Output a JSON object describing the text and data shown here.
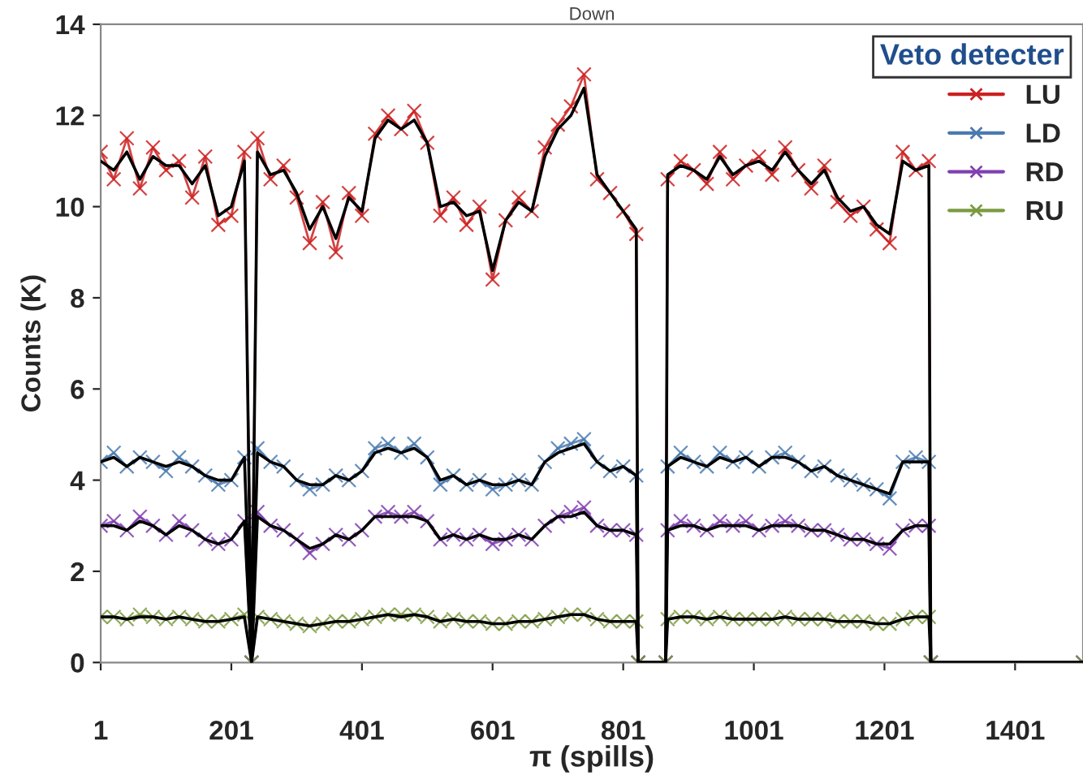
{
  "chart_data": {
    "type": "line",
    "title": "Down",
    "xlabel": "π (spills)",
    "ylabel": "Counts (K)",
    "legend_title": "Veto detecter",
    "legend": "top right",
    "marker": "cross",
    "line_style": "solid",
    "grid": false,
    "x": [
      1,
      21,
      41,
      61,
      81,
      101,
      121,
      141,
      161,
      181,
      201,
      221,
      232,
      241,
      261,
      281,
      301,
      321,
      341,
      361,
      381,
      401,
      421,
      441,
      461,
      481,
      501,
      521,
      541,
      561,
      581,
      601,
      621,
      641,
      661,
      681,
      701,
      721,
      741,
      761,
      781,
      801,
      821,
      824,
      866,
      869,
      889,
      909,
      929,
      949,
      969,
      989,
      1009,
      1029,
      1049,
      1069,
      1089,
      1109,
      1129,
      1149,
      1169,
      1189,
      1209,
      1229,
      1249,
      1269,
      1272,
      1505
    ],
    "xlim": [
      1,
      1505
    ],
    "xticks": [
      1,
      201,
      401,
      601,
      801,
      1001,
      1201,
      1401
    ],
    "ylim": [
      0,
      14
    ],
    "yticks": [
      0,
      2,
      4,
      6,
      8,
      10,
      12,
      14
    ],
    "series": [
      {
        "name": "LU",
        "color": "#cc2020",
        "values": [
          11.2,
          10.6,
          11.5,
          10.4,
          11.3,
          10.8,
          11.0,
          10.2,
          11.1,
          9.6,
          9.8,
          11.2,
          0,
          11.5,
          10.6,
          10.9,
          10.2,
          9.2,
          10.1,
          9.0,
          10.3,
          9.8,
          11.6,
          12.0,
          11.7,
          12.1,
          11.4,
          9.8,
          10.2,
          9.6,
          10.0,
          8.4,
          9.7,
          10.2,
          9.9,
          11.3,
          11.8,
          12.2,
          12.9,
          10.6,
          10.3,
          9.9,
          9.4,
          0,
          0,
          10.6,
          11.0,
          10.8,
          10.5,
          11.2,
          10.6,
          10.9,
          11.1,
          10.7,
          11.3,
          10.8,
          10.4,
          10.9,
          10.1,
          9.8,
          10.0,
          9.5,
          9.2,
          11.2,
          10.8,
          11.0,
          0,
          0
        ]
      },
      {
        "name": "LD",
        "color": "#4a7ab0",
        "values": [
          4.4,
          4.6,
          4.3,
          4.5,
          4.4,
          4.2,
          4.5,
          4.3,
          4.1,
          3.9,
          4.0,
          4.5,
          0,
          4.7,
          4.4,
          4.3,
          4.0,
          3.8,
          3.9,
          4.1,
          4.0,
          4.2,
          4.7,
          4.8,
          4.6,
          4.8,
          4.5,
          3.9,
          4.1,
          3.9,
          4.0,
          3.8,
          3.9,
          4.0,
          3.9,
          4.4,
          4.7,
          4.8,
          4.9,
          4.4,
          4.2,
          4.3,
          4.1,
          0,
          0,
          4.3,
          4.6,
          4.4,
          4.3,
          4.6,
          4.4,
          4.5,
          4.3,
          4.5,
          4.6,
          4.4,
          4.2,
          4.3,
          4.1,
          4.0,
          3.9,
          3.8,
          3.6,
          4.4,
          4.5,
          4.4,
          0,
          0
        ]
      },
      {
        "name": "RD",
        "color": "#8040b0",
        "values": [
          3.0,
          3.1,
          2.9,
          3.2,
          3.0,
          2.8,
          3.1,
          2.9,
          2.7,
          2.6,
          2.7,
          3.1,
          0,
          3.3,
          3.0,
          2.9,
          2.7,
          2.4,
          2.6,
          2.8,
          2.7,
          2.9,
          3.2,
          3.3,
          3.2,
          3.3,
          3.1,
          2.7,
          2.8,
          2.7,
          2.8,
          2.6,
          2.7,
          2.8,
          2.7,
          3.0,
          3.2,
          3.3,
          3.4,
          3.0,
          2.9,
          2.9,
          2.8,
          0,
          0,
          2.9,
          3.1,
          3.0,
          2.9,
          3.1,
          3.0,
          3.1,
          2.9,
          3.0,
          3.1,
          3.0,
          2.9,
          2.9,
          2.8,
          2.7,
          2.7,
          2.6,
          2.5,
          2.9,
          3.0,
          3.0,
          0,
          0
        ]
      },
      {
        "name": "RU",
        "color": "#7a9a40",
        "values": [
          1.0,
          1.0,
          0.95,
          1.05,
          1.0,
          0.95,
          1.0,
          0.95,
          0.9,
          0.9,
          0.95,
          1.05,
          0,
          1.0,
          0.95,
          0.9,
          0.85,
          0.8,
          0.85,
          0.9,
          0.9,
          0.95,
          1.0,
          1.05,
          1.05,
          1.05,
          1.0,
          0.9,
          0.95,
          0.9,
          0.9,
          0.85,
          0.85,
          0.9,
          0.9,
          0.95,
          1.0,
          1.05,
          1.05,
          0.95,
          0.9,
          0.9,
          0.9,
          0,
          0,
          0.95,
          1.0,
          1.0,
          0.95,
          1.0,
          0.95,
          0.95,
          0.95,
          0.95,
          1.0,
          0.95,
          0.95,
          0.95,
          0.9,
          0.9,
          0.9,
          0.85,
          0.85,
          0.95,
          1.0,
          1.0,
          0,
          0
        ]
      },
      {
        "color": "#000000",
        "marker": "none",
        "values": [
          11.0,
          10.8,
          11.2,
          10.6,
          11.1,
          10.9,
          10.9,
          10.5,
          10.9,
          9.8,
          10.0,
          11.0,
          0,
          11.2,
          10.7,
          10.8,
          10.3,
          9.5,
          10.0,
          9.3,
          10.2,
          9.9,
          11.5,
          11.9,
          11.7,
          11.9,
          11.4,
          10.0,
          10.1,
          9.8,
          9.9,
          8.6,
          9.7,
          10.1,
          9.9,
          11.1,
          11.7,
          12.0,
          12.6,
          10.7,
          10.3,
          9.9,
          9.5,
          0,
          0,
          10.7,
          10.9,
          10.8,
          10.6,
          11.1,
          10.7,
          10.9,
          11.0,
          10.8,
          11.2,
          10.8,
          10.5,
          10.8,
          10.2,
          9.9,
          10.0,
          9.6,
          9.4,
          11.0,
          10.8,
          10.9,
          0,
          0
        ]
      },
      {
        "color": "#000000",
        "marker": "none",
        "values": [
          4.4,
          4.5,
          4.3,
          4.5,
          4.4,
          4.3,
          4.4,
          4.3,
          4.1,
          4.0,
          4.0,
          4.5,
          0,
          4.6,
          4.4,
          4.3,
          4.0,
          3.9,
          3.9,
          4.1,
          4.0,
          4.2,
          4.6,
          4.7,
          4.6,
          4.7,
          4.5,
          4.0,
          4.1,
          3.9,
          4.0,
          3.9,
          3.9,
          4.0,
          3.9,
          4.4,
          4.6,
          4.7,
          4.8,
          4.4,
          4.2,
          4.3,
          4.1,
          0,
          0,
          4.3,
          4.5,
          4.4,
          4.3,
          4.5,
          4.4,
          4.5,
          4.3,
          4.5,
          4.5,
          4.4,
          4.2,
          4.3,
          4.1,
          4.0,
          3.9,
          3.8,
          3.7,
          4.4,
          4.4,
          4.4,
          0,
          0
        ]
      },
      {
        "color": "#000000",
        "marker": "none",
        "values": [
          3.0,
          3.0,
          2.9,
          3.1,
          3.0,
          2.8,
          3.0,
          2.9,
          2.7,
          2.6,
          2.7,
          3.1,
          0,
          3.2,
          3.0,
          2.9,
          2.7,
          2.5,
          2.6,
          2.8,
          2.7,
          2.9,
          3.2,
          3.2,
          3.2,
          3.2,
          3.1,
          2.7,
          2.8,
          2.7,
          2.8,
          2.7,
          2.7,
          2.8,
          2.7,
          3.0,
          3.2,
          3.2,
          3.3,
          3.0,
          2.9,
          2.9,
          2.8,
          0,
          0,
          2.9,
          3.0,
          3.0,
          2.9,
          3.0,
          3.0,
          3.0,
          2.9,
          3.0,
          3.0,
          3.0,
          2.9,
          2.9,
          2.8,
          2.7,
          2.7,
          2.6,
          2.6,
          2.9,
          3.0,
          3.0,
          0,
          0
        ]
      },
      {
        "color": "#000000",
        "marker": "none",
        "values": [
          1.0,
          1.0,
          0.95,
          1.0,
          1.0,
          0.95,
          1.0,
          0.95,
          0.9,
          0.9,
          0.95,
          1.0,
          0,
          1.0,
          0.95,
          0.9,
          0.85,
          0.8,
          0.85,
          0.9,
          0.9,
          0.95,
          1.0,
          1.05,
          1.0,
          1.05,
          1.0,
          0.9,
          0.95,
          0.9,
          0.9,
          0.85,
          0.85,
          0.9,
          0.9,
          0.95,
          1.0,
          1.05,
          1.05,
          0.95,
          0.9,
          0.9,
          0.9,
          0,
          0,
          0.95,
          1.0,
          1.0,
          0.95,
          1.0,
          0.95,
          0.95,
          0.95,
          0.95,
          1.0,
          0.95,
          0.95,
          0.95,
          0.9,
          0.9,
          0.9,
          0.85,
          0.85,
          0.95,
          1.0,
          1.0,
          0,
          0
        ]
      }
    ]
  }
}
